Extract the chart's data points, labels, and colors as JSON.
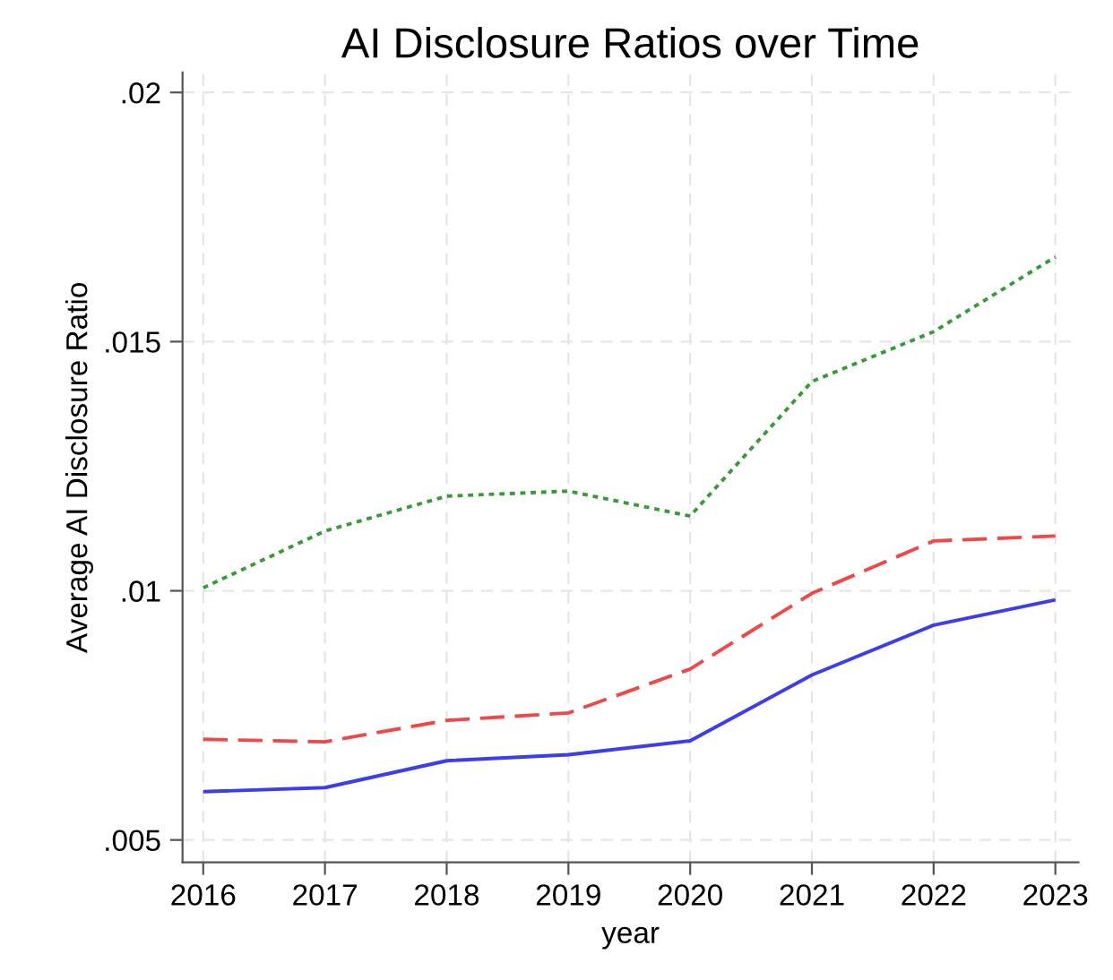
{
  "chart_data": {
    "type": "line",
    "title": "AI Disclosure Ratios over Time",
    "xlabel": "year",
    "ylabel": "Average AI Disclosure Ratio",
    "x": [
      2016,
      2017,
      2018,
      2019,
      2020,
      2021,
      2022,
      2023
    ],
    "series": [
      {
        "color": "#3c3cf0",
        "line_style": "solid",
        "values": [
          0.00597,
          0.00605,
          0.00659,
          0.00671,
          0.00699,
          0.00831,
          0.00931,
          0.00982
        ]
      },
      {
        "color": "#f04848",
        "line_style": "dashed",
        "values": [
          0.00702,
          0.00697,
          0.0074,
          0.00755,
          0.00843,
          0.00995,
          0.011,
          0.0111
        ]
      },
      {
        "color": "#3a9a3a",
        "line_style": "dotted",
        "values": [
          0.01006,
          0.0112,
          0.0119,
          0.012,
          0.0115,
          0.0142,
          0.0152,
          0.0167
        ]
      }
    ],
    "xlim": [
      2015.83,
      2023.19
    ],
    "ylim": [
      0.00455,
      0.0204
    ],
    "xticks": [
      2016,
      2017,
      2018,
      2019,
      2020,
      2021,
      2022,
      2023
    ],
    "yticks": [
      {
        "value": 0.005,
        "label": ".005"
      },
      {
        "value": 0.01,
        "label": ".01"
      },
      {
        "value": 0.015,
        "label": ".015"
      },
      {
        "value": 0.02,
        "label": ".02"
      }
    ],
    "grid": true,
    "marker": "none"
  }
}
